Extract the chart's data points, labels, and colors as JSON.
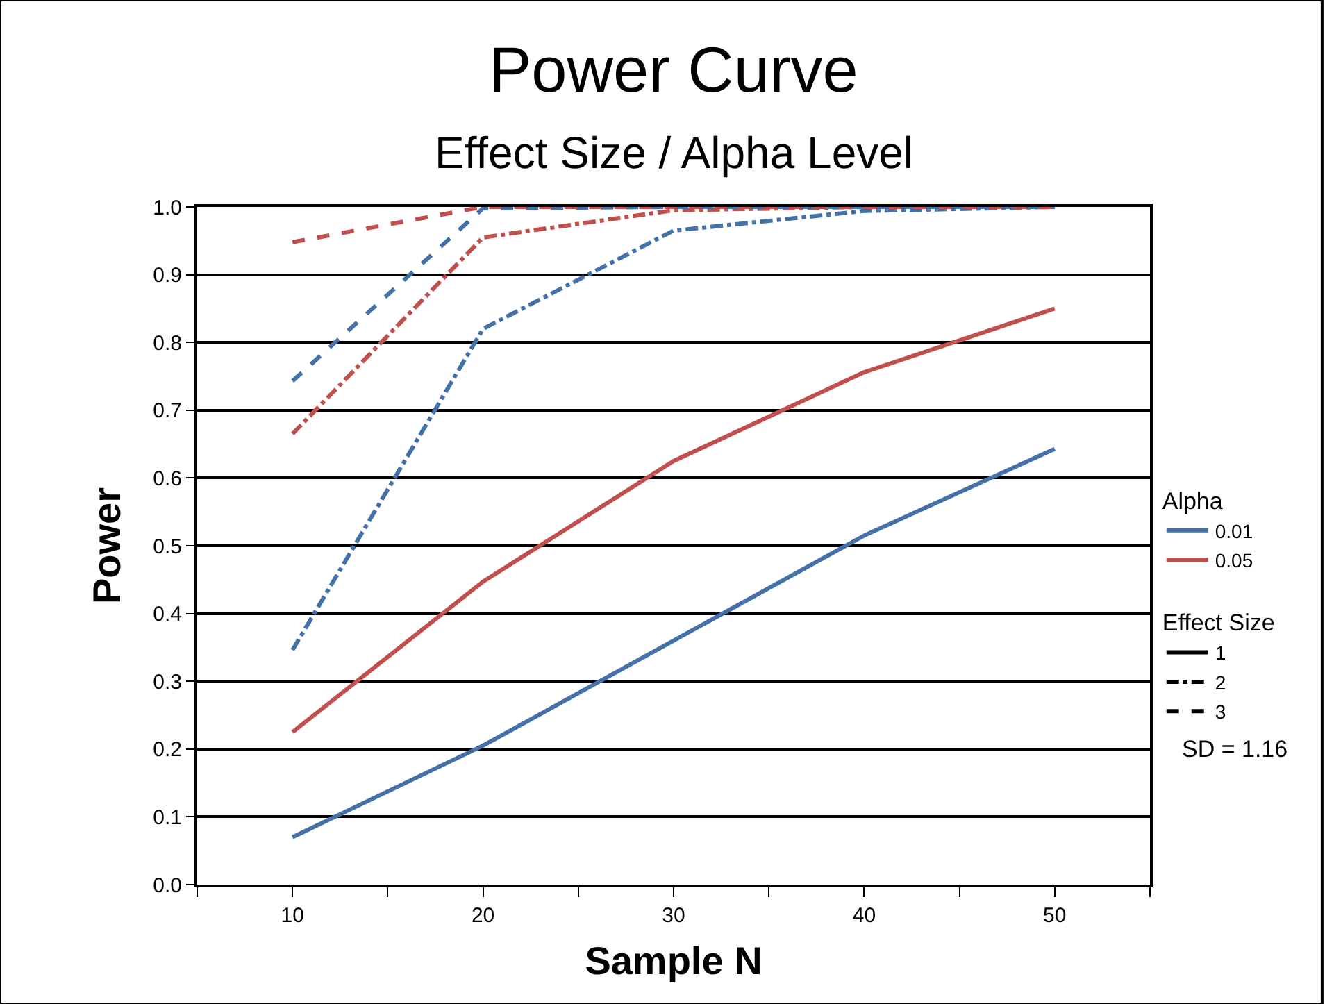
{
  "chart_data": {
    "type": "line",
    "title": "Power Curve",
    "subtitle": "Effect Size / Alpha Level",
    "xlabel": "Sample N",
    "ylabel": "Power",
    "x": [
      10,
      20,
      30,
      40,
      50
    ],
    "xlim": [
      5,
      55
    ],
    "xticks": [
      {
        "value": 5,
        "label": null
      },
      10,
      {
        "value": 15,
        "label": null
      },
      20,
      {
        "value": 25,
        "label": null
      },
      30,
      {
        "value": 35,
        "label": null
      },
      40,
      {
        "value": 45,
        "label": null
      },
      50,
      {
        "value": 55,
        "label": null
      }
    ],
    "ylim": [
      0,
      1.0
    ],
    "yticks": [
      {
        "value": 0,
        "label": "0.0"
      },
      0.1,
      0.2,
      0.3,
      0.4,
      0.5,
      0.6,
      0.7,
      0.8,
      0.9,
      {
        "value": 1.0,
        "label": "1.0"
      }
    ],
    "grid": "y",
    "legend": "right",
    "marker": "none",
    "legend_title": "Alpha",
    "annotations": [
      "Effect Size",
      "SD = 1.16"
    ],
    "series": [
      {
        "color": "#4472a8",
        "line_style": "solid",
        "values": [
          0.07,
          0.205,
          0.36,
          0.515,
          0.643
        ]
      },
      {
        "color": "#c0504d",
        "line_style": "solid",
        "values": [
          0.225,
          0.447,
          0.625,
          0.756,
          0.85
        ]
      },
      {
        "color": "#4472a8",
        "line_style": "dashdot",
        "values": [
          0.346,
          0.82,
          0.965,
          0.994,
          1.0
        ]
      },
      {
        "color": "#c0504d",
        "line_style": "dashdot",
        "values": [
          0.665,
          0.955,
          0.995,
          1.0,
          1.0
        ]
      },
      {
        "color": "#4472a8",
        "line_style": "dashed",
        "values": [
          0.743,
          0.998,
          1.0,
          1.0,
          1.0
        ]
      },
      {
        "color": "#c0504d",
        "line_style": "dashed",
        "values": [
          0.948,
          1.0,
          1.0,
          1.0,
          1.0
        ]
      },
      {
        "name": "0.01",
        "color": "#4472a8",
        "line_style": "solid",
        "values": [
          null,
          null,
          null,
          null,
          null
        ]
      },
      {
        "name": "0.05",
        "color": "#c0504d",
        "line_style": "solid",
        "values": [
          null,
          null,
          null,
          null,
          null
        ]
      },
      {
        "name": "1",
        "color": "#000000",
        "line_style": "solid",
        "values": [
          null,
          null,
          null,
          null,
          null
        ]
      },
      {
        "name": "2",
        "color": "#000000",
        "line_style": "dashdot",
        "values": [
          null,
          null,
          null,
          null,
          null
        ]
      },
      {
        "name": "3",
        "color": "#000000",
        "line_style": "dashed",
        "values": [
          null,
          null,
          null,
          null,
          null
        ]
      }
    ]
  }
}
